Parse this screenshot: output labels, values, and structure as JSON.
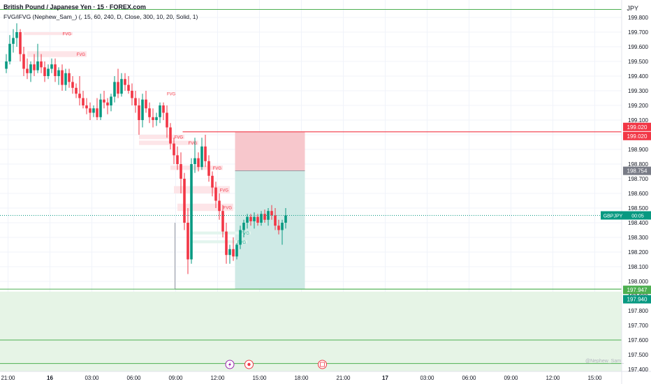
{
  "header": {
    "title": "British Pound / Japanese Yen · 15 · FOREX.com",
    "indicator": "FVG/iFVG (Nephew_Sam_) (, 15, 60, 240, D, Close, 300, 10, 20, Solid, 1)",
    "currency": "JPY",
    "watermark": "@Nephew_Sam_"
  },
  "colors": {
    "up": "#089981",
    "down": "#f23645",
    "fvg_bear_fill": "#fde5e8",
    "fvg_bear_text": "#f23645",
    "fvg_bull_fill": "#e3f5ee",
    "fvg_bull_text": "#22ab94",
    "level_green": "#4caf50",
    "stop_zone": "#f7c7cc",
    "target_zone": "#cfeae6",
    "grid": "#f0f3fa"
  },
  "chart_data": {
    "type": "candlestick",
    "symbol": "GBPJPY",
    "ylim": [
      197.4,
      199.85
    ],
    "y_ticks": [
      "199.800",
      "199.700",
      "199.600",
      "199.500",
      "199.400",
      "199.300",
      "199.200",
      "199.100",
      "199.000",
      "198.900",
      "198.800",
      "198.700",
      "198.600",
      "198.500",
      "198.400",
      "198.300",
      "198.200",
      "198.100",
      "198.000",
      "197.900",
      "197.800",
      "197.700",
      "197.600",
      "197.500",
      "197.400"
    ],
    "x_ticks": [
      {
        "label": "21:00",
        "x": 0.5
      },
      {
        "label": "16",
        "x": 12.5,
        "bold": true
      },
      {
        "label": "03:00",
        "x": 24.5
      },
      {
        "label": "06:00",
        "x": 36.5
      },
      {
        "label": "09:00",
        "x": 48.5
      },
      {
        "label": "12:00",
        "x": 60.5
      },
      {
        "label": "15:00",
        "x": 72.5
      },
      {
        "label": "18:00",
        "x": 84.5
      },
      {
        "label": "21:00",
        "x": 96.5
      },
      {
        "label": "17",
        "x": 108.5,
        "bold": true
      },
      {
        "label": "03:00",
        "x": 120.5
      },
      {
        "label": "06:00",
        "x": 132.5
      },
      {
        "label": "09:00",
        "x": 144.5
      },
      {
        "label": "12:00",
        "x": 156.5
      },
      {
        "label": "15:00",
        "x": 168.5
      }
    ],
    "candles": [
      [
        199.45,
        199.55,
        199.42,
        199.5
      ],
      [
        199.5,
        199.68,
        199.48,
        199.62
      ],
      [
        199.62,
        199.72,
        199.56,
        199.66
      ],
      [
        199.66,
        199.76,
        199.6,
        199.7
      ],
      [
        199.7,
        199.72,
        199.5,
        199.55
      ],
      [
        199.55,
        199.6,
        199.4,
        199.45
      ],
      [
        199.45,
        199.52,
        199.38,
        199.42
      ],
      [
        199.42,
        199.5,
        199.36,
        199.48
      ],
      [
        199.48,
        199.55,
        199.4,
        199.44
      ],
      [
        199.44,
        199.62,
        199.42,
        199.5
      ],
      [
        199.5,
        199.55,
        199.42,
        199.46
      ],
      [
        199.46,
        199.5,
        199.36,
        199.4
      ],
      [
        199.4,
        199.48,
        199.38,
        199.45
      ],
      [
        199.45,
        199.52,
        199.42,
        199.48
      ],
      [
        199.48,
        199.52,
        199.36,
        199.4
      ],
      [
        199.4,
        199.46,
        199.34,
        199.44
      ],
      [
        199.44,
        199.48,
        199.3,
        199.34
      ],
      [
        199.34,
        199.45,
        199.3,
        199.42
      ],
      [
        199.42,
        199.45,
        199.32,
        199.36
      ],
      [
        199.36,
        199.4,
        199.28,
        199.32
      ],
      [
        199.32,
        199.35,
        199.25,
        199.28
      ],
      [
        199.28,
        199.4,
        199.2,
        199.25
      ],
      [
        199.25,
        199.3,
        199.18,
        199.2
      ],
      [
        199.2,
        199.25,
        199.14,
        199.18
      ],
      [
        199.18,
        199.22,
        199.1,
        199.15
      ],
      [
        199.15,
        199.2,
        199.12,
        199.18
      ],
      [
        199.18,
        199.25,
        199.1,
        199.12
      ],
      [
        199.12,
        199.28,
        199.1,
        199.24
      ],
      [
        199.24,
        199.3,
        199.18,
        199.22
      ],
      [
        199.22,
        199.25,
        199.14,
        199.2
      ],
      [
        199.2,
        199.28,
        199.16,
        199.26
      ],
      [
        199.26,
        199.4,
        199.22,
        199.36
      ],
      [
        199.36,
        199.45,
        199.25,
        199.28
      ],
      [
        199.28,
        199.42,
        199.26,
        199.38
      ],
      [
        199.38,
        199.42,
        199.3,
        199.34
      ],
      [
        199.34,
        199.4,
        199.28,
        199.3
      ],
      [
        199.3,
        199.35,
        199.2,
        199.25
      ],
      [
        199.25,
        199.3,
        199.15,
        199.2
      ],
      [
        199.2,
        199.25,
        199.0,
        199.1
      ],
      [
        199.1,
        199.28,
        199.05,
        199.24
      ],
      [
        199.24,
        199.3,
        199.15,
        199.18
      ],
      [
        199.18,
        199.22,
        199.08,
        199.12
      ],
      [
        199.12,
        199.18,
        199.05,
        199.1
      ],
      [
        199.1,
        199.15,
        199.06,
        199.12
      ],
      [
        199.12,
        199.22,
        199.08,
        199.2
      ],
      [
        199.2,
        199.22,
        199.1,
        199.15
      ],
      [
        199.15,
        199.2,
        198.98,
        199.05
      ],
      [
        199.05,
        199.08,
        198.9,
        198.94
      ],
      [
        198.94,
        198.98,
        198.8,
        198.86
      ],
      [
        198.86,
        198.92,
        198.76,
        198.8
      ],
      [
        198.8,
        198.88,
        198.6,
        198.7
      ],
      [
        198.7,
        198.74,
        198.35,
        198.4
      ],
      [
        198.4,
        198.5,
        198.05,
        198.15
      ],
      [
        198.15,
        198.84,
        198.12,
        198.8
      ],
      [
        198.8,
        198.98,
        198.74,
        198.84
      ],
      [
        198.84,
        198.88,
        198.75,
        198.78
      ],
      [
        198.78,
        198.98,
        198.76,
        198.92
      ],
      [
        198.92,
        199.0,
        198.78,
        198.82
      ],
      [
        198.82,
        198.86,
        198.68,
        198.72
      ],
      [
        198.72,
        198.75,
        198.58,
        198.64
      ],
      [
        198.64,
        198.68,
        198.5,
        198.55
      ],
      [
        198.55,
        198.6,
        198.42,
        198.48
      ],
      [
        198.48,
        198.52,
        198.3,
        198.34
      ],
      [
        198.34,
        198.4,
        198.12,
        198.18
      ],
      [
        198.18,
        198.25,
        198.12,
        198.22
      ],
      [
        198.22,
        198.3,
        198.14,
        198.17
      ],
      [
        198.17,
        198.26,
        198.15,
        198.25
      ],
      [
        198.25,
        198.38,
        198.22,
        198.35
      ],
      [
        198.35,
        198.42,
        198.3,
        198.4
      ],
      [
        198.4,
        198.46,
        198.36,
        198.44
      ],
      [
        198.44,
        198.46,
        198.38,
        198.41
      ],
      [
        198.41,
        198.47,
        198.36,
        198.44
      ],
      [
        198.44,
        198.46,
        198.38,
        198.4
      ],
      [
        198.4,
        198.48,
        198.38,
        198.46
      ],
      [
        198.46,
        198.49,
        198.4,
        198.42
      ],
      [
        198.42,
        198.5,
        198.38,
        198.48
      ],
      [
        198.48,
        198.52,
        198.42,
        198.45
      ],
      [
        198.45,
        198.5,
        198.35,
        198.38
      ],
      [
        198.38,
        198.42,
        198.32,
        198.35
      ],
      [
        198.35,
        198.42,
        198.25,
        198.4
      ],
      [
        198.4,
        198.5,
        198.36,
        198.45
      ]
    ],
    "price_levels": [
      {
        "price": 199.02,
        "label": "199.020",
        "color": "#f23645"
      },
      {
        "price": 198.754,
        "label": "198.754",
        "color": "#787b86"
      },
      {
        "price": 197.947,
        "label": "197.947",
        "color": "#4caf50"
      },
      {
        "price": 197.94,
        "label": "197.940",
        "color": "#089981"
      }
    ],
    "current": {
      "symbol": "GBPJPY",
      "countdown": "00:05",
      "price": 198.45
    },
    "red_line_price": 199.02,
    "green_zone": {
      "top": 197.93,
      "bottom": 197.4
    },
    "green_lines": [
      199.855,
      197.947,
      197.6,
      197.44
    ],
    "position": {
      "entry": 198.754,
      "stop": 199.02,
      "target": 197.947,
      "from_x": 65.5,
      "to_x": 85.5
    },
    "fvg_bear": [
      {
        "x1": 5,
        "x2": 19,
        "top": 199.7,
        "bottom": 199.68,
        "label": "FVG"
      },
      {
        "x1": 6,
        "x2": 23,
        "top": 199.57,
        "bottom": 199.53,
        "label": "FVG"
      },
      {
        "x1": 38,
        "x2": 51,
        "top": 199.0,
        "bottom": 198.97,
        "label": "FVG"
      },
      {
        "x1": 38,
        "x2": 55,
        "top": 198.96,
        "bottom": 198.93,
        "label": "FVG"
      },
      {
        "x1": 47,
        "x2": 62,
        "top": 198.79,
        "bottom": 198.76,
        "label": "FVG"
      },
      {
        "x1": 48,
        "x2": 64,
        "top": 198.65,
        "bottom": 198.6,
        "label": "FVG"
      },
      {
        "x1": 49,
        "x2": 65,
        "top": 198.53,
        "bottom": 198.48,
        "label": "FVG"
      }
    ],
    "fvg_bear_label_only": [
      {
        "x": 46,
        "price": 199.27,
        "label": "FVG"
      }
    ],
    "fvg_bull": [
      {
        "x1": 53,
        "x2": 70,
        "top": 198.34,
        "bottom": 198.32,
        "label": "FVG"
      },
      {
        "x1": 53,
        "x2": 69,
        "top": 198.28,
        "bottom": 198.26,
        "label": "FVG"
      }
    ],
    "events": [
      {
        "x": 64,
        "kind": "lightning"
      },
      {
        "x": 69.5,
        "kind": "dot"
      },
      {
        "x": 90.5,
        "kind": "calendar"
      }
    ]
  }
}
